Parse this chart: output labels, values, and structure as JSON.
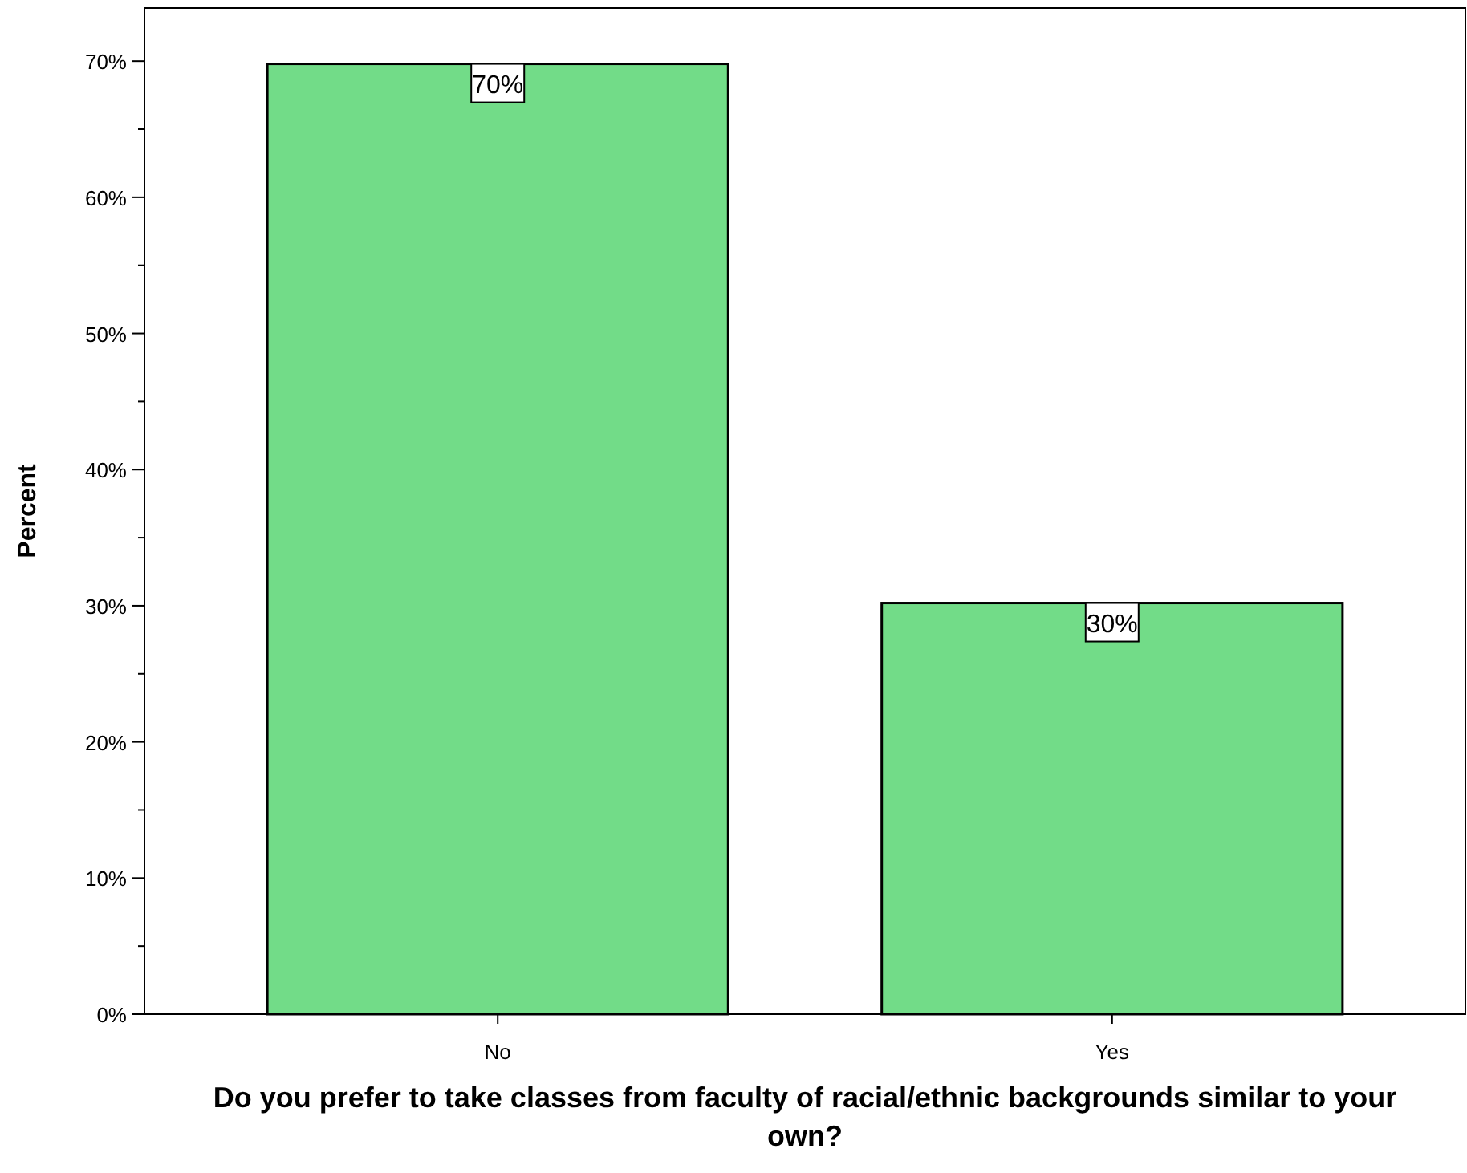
{
  "chart_data": {
    "type": "bar",
    "xlabel": "Do you prefer to take classes from faculty of racial/ethnic backgrounds similar to your own?",
    "ylabel": "Percent",
    "categories": [
      "No",
      "Yes"
    ],
    "values": [
      69.8,
      30.2
    ],
    "value_labels": [
      "70%",
      "30%"
    ],
    "color": "#72dc88",
    "ylim": [
      0,
      73.9
    ],
    "yticks": [
      {
        "value": 0,
        "label": "0%"
      },
      {
        "value": 5,
        "label": null
      },
      {
        "value": 10,
        "label": "10%"
      },
      {
        "value": 15,
        "label": null
      },
      {
        "value": 20,
        "label": "20%"
      },
      {
        "value": 25,
        "label": null
      },
      {
        "value": 30,
        "label": "30%"
      },
      {
        "value": 35,
        "label": null
      },
      {
        "value": 40,
        "label": "40%"
      },
      {
        "value": 45,
        "label": null
      },
      {
        "value": 50,
        "label": "50%"
      },
      {
        "value": 55,
        "label": null
      },
      {
        "value": 60,
        "label": "60%"
      },
      {
        "value": 65,
        "label": null
      },
      {
        "value": 70,
        "label": "70%"
      }
    ],
    "grid": false
  }
}
